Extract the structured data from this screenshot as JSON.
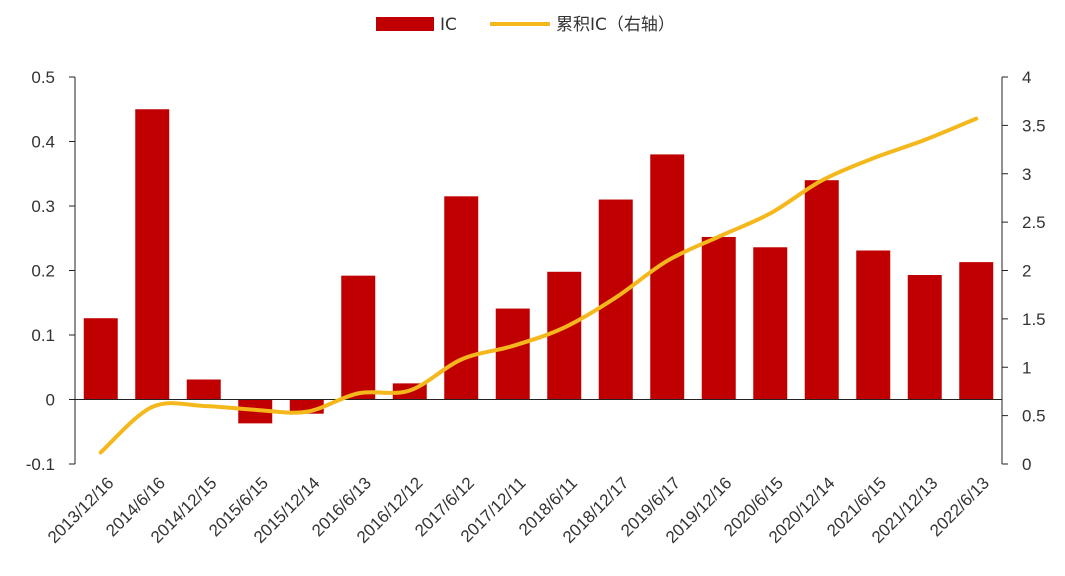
{
  "chart_data": {
    "type": "bar",
    "categories": [
      "2013/12/16",
      "2014/6/16",
      "2014/12/15",
      "2015/6/15",
      "2015/12/14",
      "2016/6/13",
      "2016/12/12",
      "2017/6/12",
      "2017/12/11",
      "2018/6/11",
      "2018/12/17",
      "2019/6/17",
      "2019/12/16",
      "2020/6/15",
      "2020/12/14",
      "2021/6/15",
      "2021/12/13",
      "2022/6/13"
    ],
    "series": [
      {
        "name": "IC",
        "type": "bar",
        "axis": "left",
        "color": "#C00000",
        "values": [
          0.126,
          0.45,
          0.031,
          -0.037,
          -0.022,
          0.192,
          0.025,
          0.315,
          0.141,
          0.198,
          0.31,
          0.38,
          0.252,
          0.236,
          0.34,
          0.231,
          0.193,
          0.213
        ]
      },
      {
        "name": "累积IC（右轴）",
        "type": "line",
        "axis": "right",
        "color": "#F5B81C",
        "values": [
          0.12,
          0.59,
          0.6,
          0.56,
          0.54,
          0.73,
          0.76,
          1.08,
          1.22,
          1.41,
          1.72,
          2.1,
          2.35,
          2.59,
          2.93,
          3.16,
          3.35,
          3.57
        ]
      }
    ],
    "y_left": {
      "min": -0.1,
      "max": 0.5,
      "ticks": [
        "-0.1",
        "0",
        "0.1",
        "0.2",
        "0.3",
        "0.4",
        "0.5"
      ]
    },
    "y_right": {
      "min": 0,
      "max": 4,
      "ticks": [
        "0",
        "0.5",
        "1",
        "1.5",
        "2",
        "2.5",
        "3",
        "3.5",
        "4"
      ]
    },
    "legend_position": "top-center",
    "grid": false
  }
}
